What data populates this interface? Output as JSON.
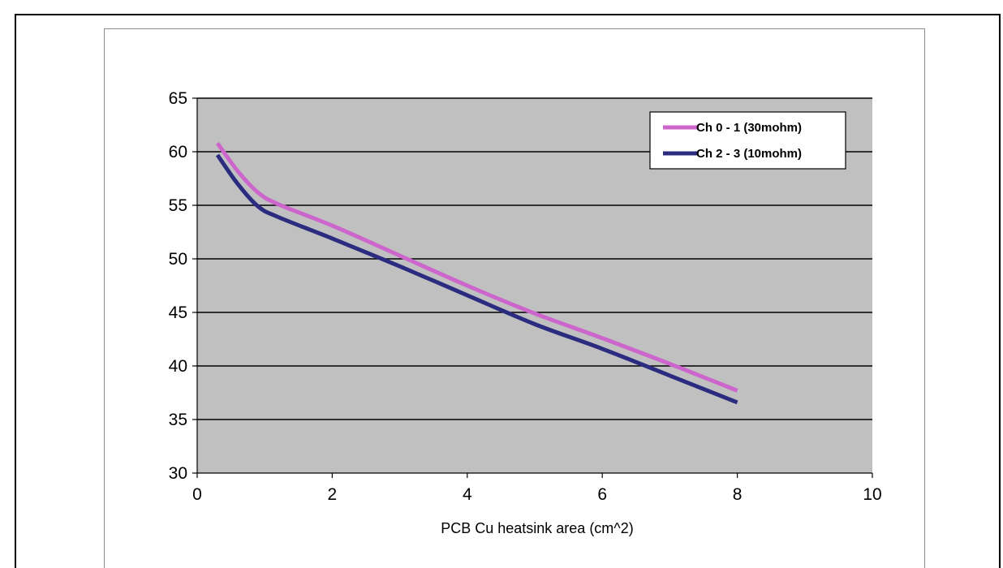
{
  "heading": "",
  "chart_data": {
    "type": "line",
    "title": "",
    "xlabel": "PCB Cu heatsink area (cm^2)",
    "ylabel": "",
    "xlim": [
      0,
      10
    ],
    "ylim": [
      30,
      65
    ],
    "xticks": [
      0,
      2,
      4,
      6,
      8,
      10
    ],
    "yticks": [
      30,
      35,
      40,
      45,
      50,
      55,
      60,
      65
    ],
    "grid": "horizontal",
    "legend_position": "top-right",
    "plot_background": "#c0c0c0",
    "series": [
      {
        "name": "Ch 0 - 1 (30mohm)",
        "color": "#cc66cc",
        "x": [
          0.3,
          0.6,
          0.9,
          1.2,
          2,
          3,
          4,
          5,
          6,
          7,
          8
        ],
        "y": [
          60.8,
          58.2,
          56.2,
          55.1,
          53.1,
          50.3,
          47.5,
          44.9,
          42.6,
          40.2,
          37.7
        ]
      },
      {
        "name": "Ch 2 - 3 (10mohm)",
        "color": "#2b2b80",
        "x": [
          0.3,
          0.6,
          0.9,
          1.2,
          2,
          3,
          4,
          5,
          6,
          7,
          8
        ],
        "y": [
          59.7,
          57.0,
          54.9,
          53.9,
          51.9,
          49.3,
          46.6,
          43.9,
          41.6,
          39.1,
          36.6
        ]
      }
    ]
  }
}
